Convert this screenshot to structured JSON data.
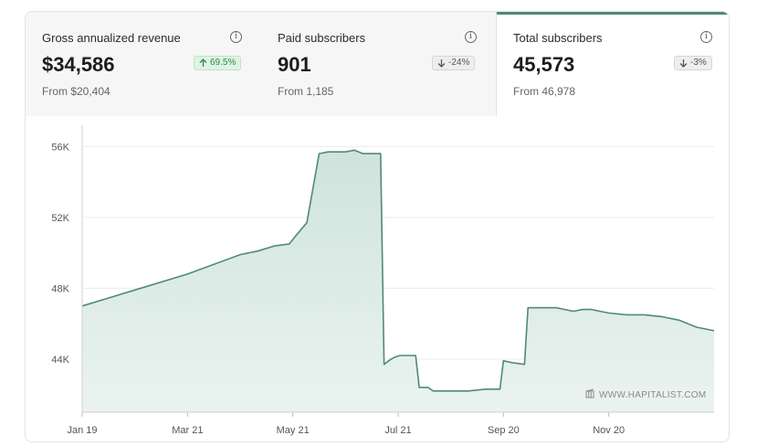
{
  "stats": [
    {
      "label": "Gross annualized revenue",
      "value": "$34,586",
      "change": "69.5%",
      "direction": "up",
      "from": "From $20,404",
      "active": false
    },
    {
      "label": "Paid subscribers",
      "value": "901",
      "change": "-24%",
      "direction": "down",
      "from": "From 1,185",
      "active": false
    },
    {
      "label": "Total subscribers",
      "value": "45,573",
      "change": "-3%",
      "direction": "down",
      "from": "From 46,978",
      "active": true
    }
  ],
  "icons": {
    "info": "info-icon",
    "arrow_up": "arrow-up-icon",
    "arrow_down": "arrow-down-icon",
    "watermark": "building-icon"
  },
  "info_glyph": "i",
  "colors": {
    "accent": "#4f8a7b",
    "fill": "#dcebe6",
    "up": "#2d8a4b"
  },
  "chart_data": {
    "type": "area",
    "xlabel": "",
    "ylabel": "",
    "ylim": [
      41000,
      57000
    ],
    "yticks": [
      44000,
      48000,
      52000,
      56000
    ],
    "ytick_labels": [
      "44K",
      "48K",
      "52K",
      "56K"
    ],
    "xticks": [
      0,
      60,
      120,
      180,
      240,
      300
    ],
    "xtick_labels": [
      "Jan 19",
      "Mar 21",
      "May 21",
      "Jul 21",
      "Sep 20",
      "Nov 20"
    ],
    "x": [
      0,
      30,
      60,
      90,
      100,
      110,
      118,
      122,
      128,
      135,
      140,
      145,
      150,
      155,
      160,
      165,
      170,
      172,
      176,
      178,
      181,
      185,
      190,
      192,
      197,
      200,
      210,
      220,
      230,
      238,
      240,
      245,
      252,
      254,
      260,
      270,
      275,
      280,
      285,
      290,
      300,
      310,
      320,
      330,
      340,
      350,
      360
    ],
    "values": [
      47000,
      47900,
      48800,
      49900,
      50100,
      50400,
      50500,
      51000,
      51700,
      55600,
      55700,
      55700,
      55700,
      55800,
      55600,
      55600,
      55600,
      43700,
      44000,
      44100,
      44200,
      44200,
      44200,
      42400,
      42400,
      42200,
      42200,
      42200,
      42300,
      42300,
      43900,
      43800,
      43700,
      46900,
      46900,
      46900,
      46800,
      46700,
      46800,
      46800,
      46600,
      46500,
      46500,
      46400,
      46200,
      45800,
      45600
    ],
    "watermark": "WWW.HAPITALIST.COM"
  }
}
